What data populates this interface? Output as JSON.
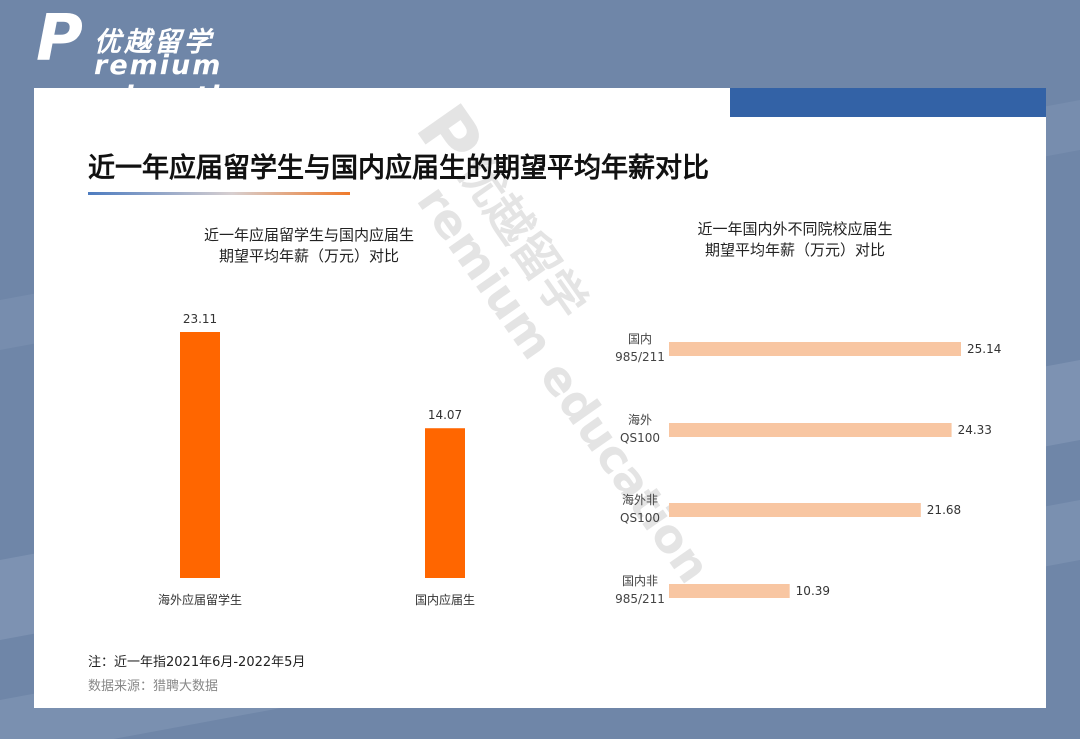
{
  "brand": {
    "logo_letter": "P",
    "logo_cn": "优越留学",
    "logo_en": "remium education",
    "watermark_cn": "优越留学",
    "watermark_en": "remium education"
  },
  "page": {
    "title": "近一年应届留学生与国内应届生的期望平均年薪对比",
    "note": "注：近一年指2021年6月-2022年5月",
    "source": "数据来源：猎聘大数据"
  },
  "colors": {
    "background": "#6f86a8",
    "accent_blue": "#3362a6",
    "bar_orange": "#ff6600",
    "bar_peach": "#f8c6a2"
  },
  "chart_data": [
    {
      "type": "bar",
      "title_line1": "近一年应届留学生与国内应届生",
      "title_line2": "期望平均年薪（万元）对比",
      "categories": [
        "海外应届留学生",
        "国内应届生"
      ],
      "values": [
        23.11,
        14.07
      ],
      "ylim": [
        0,
        23.11
      ],
      "grid": false,
      "color": "#ff6600"
    },
    {
      "type": "bar",
      "orientation": "horizontal",
      "title_line1": "近一年国内外不同院校应届生",
      "title_line2": "期望平均年薪（万元）对比",
      "categories": [
        [
          "国内",
          "985/211"
        ],
        [
          "海外",
          "QS100"
        ],
        [
          "海外非",
          "QS100"
        ],
        [
          "国内非",
          "985/211"
        ]
      ],
      "values": [
        25.14,
        24.33,
        21.68,
        10.39
      ],
      "xlim": [
        0,
        25.14
      ],
      "grid": false,
      "color": "#f8c6a2"
    }
  ]
}
